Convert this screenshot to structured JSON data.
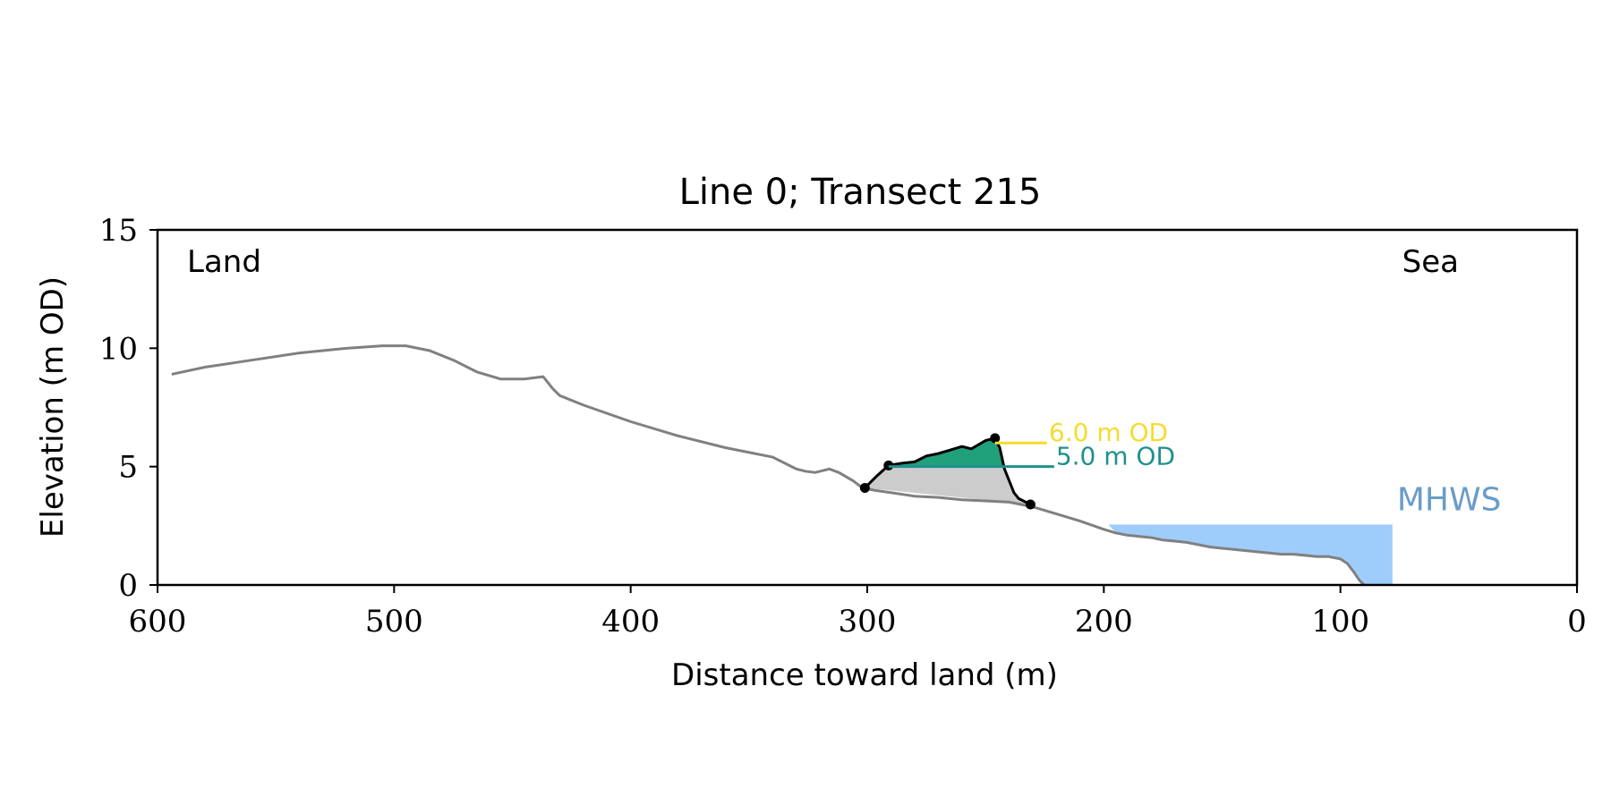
{
  "chart_data": {
    "type": "line",
    "title": "Line 0; Transect 215",
    "xlabel": "Distance toward land (m)",
    "ylabel": "Elevation (m OD)",
    "xlim": [
      600,
      0
    ],
    "ylim": [
      0,
      15
    ],
    "x_ticks": [
      600,
      500,
      400,
      300,
      200,
      100,
      0
    ],
    "y_ticks": [
      0,
      5,
      10,
      15
    ],
    "x_tick_labels": [
      "600",
      "500",
      "400",
      "300",
      "200",
      "100",
      "0"
    ],
    "y_tick_labels": [
      "0",
      "5",
      "10",
      "15"
    ],
    "grid": false,
    "corner_labels": {
      "left": "Land",
      "right": "Sea"
    },
    "colors": {
      "profile": "#808080",
      "dune": "#000000",
      "dune_fill": "#21a07c",
      "below_fill": "#cccccc",
      "level_6": "#f5dc2e",
      "level_5": "#20908c",
      "mhws_fill": "#9ecdfc",
      "mhws_text": "#6a9cc8"
    },
    "series": [
      {
        "role": "profile",
        "x": [
          594,
          580,
          560,
          540,
          520,
          505,
          495,
          485,
          475,
          465,
          455,
          445,
          437,
          433,
          430,
          420,
          400,
          380,
          360,
          340,
          330,
          326,
          322,
          316,
          312,
          306,
          302,
          297,
          290,
          280,
          270,
          260,
          250,
          240,
          235,
          230,
          220,
          210,
          200,
          195,
          190,
          180,
          175,
          170,
          165,
          160,
          155,
          150,
          145,
          140,
          135,
          130,
          125,
          120,
          115,
          110,
          105,
          100,
          97,
          94,
          92,
          90
        ],
        "y": [
          8.9,
          9.2,
          9.5,
          9.8,
          10.0,
          10.1,
          10.1,
          9.9,
          9.5,
          9.0,
          8.7,
          8.7,
          8.8,
          8.3,
          8.0,
          7.6,
          6.9,
          6.3,
          5.8,
          5.4,
          4.9,
          4.8,
          4.75,
          4.9,
          4.75,
          4.4,
          4.1,
          4.0,
          3.9,
          3.75,
          3.7,
          3.6,
          3.55,
          3.5,
          3.4,
          3.3,
          3.0,
          2.7,
          2.35,
          2.2,
          2.1,
          2.0,
          1.9,
          1.85,
          1.8,
          1.7,
          1.6,
          1.55,
          1.5,
          1.45,
          1.4,
          1.35,
          1.3,
          1.3,
          1.25,
          1.2,
          1.2,
          1.1,
          0.9,
          0.5,
          0.2,
          0.0
        ]
      },
      {
        "role": "dune",
        "x": [
          301,
          296,
          291,
          285,
          280,
          275,
          270,
          265,
          260,
          256,
          250,
          246,
          244,
          242,
          240,
          238,
          236,
          233,
          231
        ],
        "y": [
          4.1,
          4.6,
          5.05,
          5.15,
          5.2,
          5.45,
          5.55,
          5.7,
          5.85,
          5.75,
          6.1,
          6.2,
          5.8,
          4.9,
          4.4,
          3.9,
          3.65,
          3.5,
          3.4
        ]
      }
    ],
    "markers": [
      {
        "x": 301,
        "y": 4.1
      },
      {
        "x": 291,
        "y": 5.05
      },
      {
        "x": 246,
        "y": 6.2
      },
      {
        "x": 231,
        "y": 3.4
      }
    ],
    "levels": [
      {
        "label": "6.0 m OD",
        "y": 6.0,
        "x_from": 246,
        "x_to": 224,
        "color_key": "level_6"
      },
      {
        "label": "5.0 m OD",
        "y": 5.0,
        "x_from": 291,
        "x_to": 221,
        "color_key": "level_5"
      }
    ],
    "mhws": {
      "label": "MHWS",
      "elevation": 2.55,
      "x_from": 198,
      "x_to": 78
    }
  }
}
